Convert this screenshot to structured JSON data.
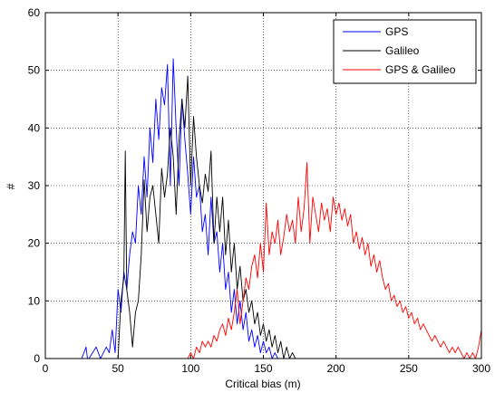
{
  "chart_data": {
    "type": "line",
    "title": "",
    "xlabel": "Critical bias (m)",
    "ylabel": "#",
    "xlim": [
      0,
      300
    ],
    "ylim": [
      0,
      60
    ],
    "xticks": [
      0,
      50,
      100,
      150,
      200,
      250,
      300
    ],
    "yticks": [
      0,
      10,
      20,
      30,
      40,
      50,
      60
    ],
    "xtick_labels": [
      "0",
      "50",
      "100",
      "150",
      "200",
      "250",
      "300"
    ],
    "ytick_labels": [
      "0",
      "10",
      "20",
      "30",
      "40",
      "50",
      "60"
    ],
    "grid": true,
    "legend_position": "top-right",
    "series": [
      {
        "name": "GPS",
        "color": "#0000ff",
        "x": [
          0,
          25,
          28,
          29,
          30,
          35,
          38,
          40,
          42,
          44,
          46,
          48,
          50,
          52,
          54,
          56,
          58,
          60,
          62,
          64,
          66,
          68,
          70,
          72,
          74,
          76,
          78,
          80,
          82,
          84,
          86,
          88,
          90,
          92,
          94,
          96,
          98,
          100,
          102,
          104,
          106,
          108,
          110,
          112,
          114,
          116,
          118,
          120,
          122,
          124,
          126,
          128,
          130,
          132,
          134,
          136,
          138,
          140,
          142,
          144,
          146,
          148,
          150,
          152,
          154,
          156,
          158,
          160,
          300
        ],
        "y": [
          0,
          0,
          2,
          0,
          0,
          2,
          0,
          1,
          2,
          1,
          5,
          1,
          12,
          8,
          15,
          12,
          18,
          22,
          20,
          30,
          25,
          35,
          28,
          40,
          34,
          45,
          38,
          47,
          44,
          51,
          30,
          52,
          40,
          30,
          45,
          38,
          32,
          25,
          35,
          28,
          30,
          22,
          25,
          18,
          28,
          20,
          22,
          15,
          20,
          12,
          15,
          8,
          12,
          6,
          10,
          5,
          8,
          3,
          5,
          2,
          4,
          1,
          3,
          1,
          2,
          0,
          1,
          0,
          0
        ]
      },
      {
        "name": "Galileo",
        "color": "#000000",
        "x": [
          0,
          50,
          52,
          54,
          55,
          56,
          57,
          58,
          60,
          62,
          64,
          66,
          68,
          70,
          72,
          74,
          76,
          78,
          80,
          82,
          84,
          86,
          88,
          90,
          92,
          94,
          96,
          98,
          100,
          102,
          104,
          106,
          108,
          110,
          112,
          114,
          116,
          118,
          120,
          122,
          124,
          126,
          128,
          130,
          132,
          134,
          136,
          138,
          140,
          142,
          144,
          146,
          148,
          150,
          152,
          154,
          156,
          158,
          160,
          162,
          164,
          166,
          168,
          170,
          172,
          174,
          300
        ],
        "y": [
          0,
          0,
          10,
          14,
          36,
          12,
          10,
          8,
          2,
          8,
          10,
          18,
          31,
          22,
          28,
          30,
          25,
          20,
          33,
          28,
          32,
          40,
          35,
          25,
          38,
          45,
          40,
          49,
          30,
          42,
          35,
          30,
          27,
          32,
          29,
          36,
          20,
          28,
          22,
          28,
          18,
          24,
          15,
          20,
          12,
          16,
          10,
          12,
          8,
          10,
          6,
          8,
          4,
          6,
          3,
          5,
          2,
          4,
          1,
          3,
          0,
          2,
          0,
          1,
          0,
          0,
          0
        ]
      },
      {
        "name": "GPS & Galileo",
        "color": "#ff0000",
        "x": [
          0,
          98,
          100,
          102,
          104,
          106,
          108,
          110,
          112,
          114,
          116,
          118,
          120,
          122,
          124,
          126,
          128,
          130,
          132,
          134,
          136,
          138,
          140,
          142,
          144,
          146,
          148,
          150,
          152,
          154,
          156,
          158,
          160,
          162,
          164,
          166,
          168,
          170,
          172,
          174,
          176,
          178,
          180,
          182,
          184,
          186,
          188,
          190,
          192,
          194,
          196,
          198,
          200,
          202,
          204,
          206,
          208,
          210,
          212,
          214,
          216,
          218,
          220,
          222,
          224,
          226,
          228,
          230,
          232,
          234,
          236,
          238,
          240,
          242,
          244,
          246,
          248,
          250,
          252,
          254,
          256,
          258,
          260,
          262,
          264,
          266,
          268,
          270,
          272,
          274,
          276,
          278,
          280,
          282,
          284,
          286,
          288,
          290,
          292,
          294,
          296,
          298,
          300
        ],
        "y": [
          0,
          0,
          1,
          0,
          2,
          1,
          3,
          2,
          3,
          2,
          4,
          3,
          5,
          6,
          4,
          7,
          5,
          8,
          12,
          6,
          10,
          14,
          12,
          16,
          18,
          14,
          20,
          15,
          27,
          18,
          22,
          20,
          24,
          18,
          21,
          25,
          22,
          24,
          20,
          28,
          22,
          26,
          34,
          20,
          28,
          25,
          22,
          27,
          24,
          26,
          22,
          28,
          25,
          27,
          24,
          26,
          23,
          25,
          20,
          22,
          19,
          21,
          18,
          20,
          16,
          18,
          15,
          17,
          14,
          12,
          13,
          10,
          11,
          9,
          10,
          8,
          9,
          7,
          8,
          6,
          7,
          5,
          6,
          5,
          4,
          3,
          4,
          3,
          2,
          3,
          2,
          1,
          2,
          1,
          2,
          1,
          0,
          1,
          0,
          1,
          0,
          2,
          5
        ]
      }
    ]
  }
}
